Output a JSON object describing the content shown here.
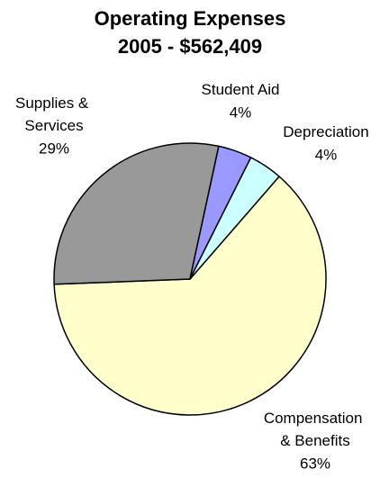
{
  "chart_data": {
    "type": "pie",
    "title": [
      "Operating Expenses",
      "2005 - $562,409"
    ],
    "categories": [
      "Compensation & Benefits",
      "Supplies & Services",
      "Student Aid",
      "Depreciation"
    ],
    "values": [
      63,
      29,
      4,
      4
    ],
    "value_labels": [
      "63%",
      "29%",
      "4%",
      "4%"
    ],
    "colors": [
      "#ffffcc",
      "#999999",
      "#9999ff",
      "#ccffff"
    ]
  }
}
